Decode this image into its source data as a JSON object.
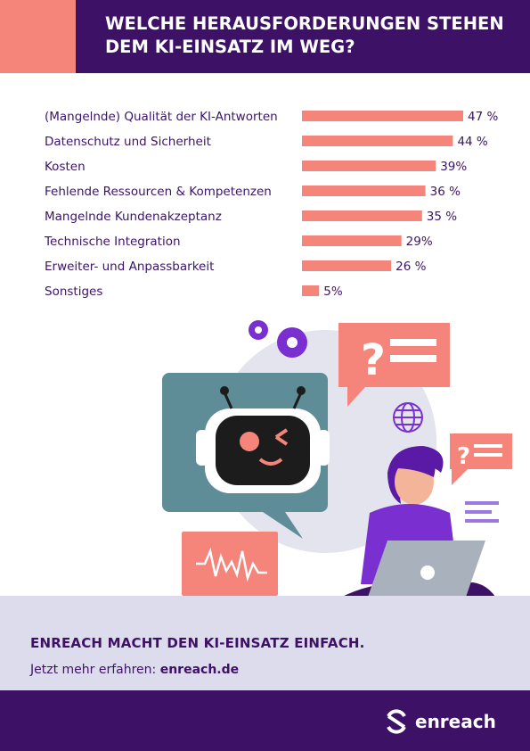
{
  "header": {
    "title": "WELCHE HERAUSFORDERUNGEN STEHEN DEM KI-EINSATZ IM WEG?"
  },
  "chart_data": {
    "type": "bar",
    "orientation": "horizontal",
    "title": "WELCHE HERAUSFORDERUNGEN STEHEN DEM KI-EINSATZ IM WEG?",
    "categories": [
      "(Mangelnde) Qualität der KI-Antworten",
      "Datenschutz und Sicherheit",
      "Kosten",
      "Fehlende Ressourcen & Kompetenzen",
      "Mangelnde Kundenakzeptanz",
      "Technische Integration",
      "Erweiter- und Anpassbarkeit",
      "Sonstiges"
    ],
    "values": [
      47,
      44,
      39,
      36,
      35,
      29,
      26,
      5
    ],
    "value_labels": [
      "47 %",
      "44 %",
      "39%",
      "36 %",
      "35 %",
      "29%",
      "26 %",
      "5%"
    ],
    "xlim": [
      0,
      47
    ],
    "grid": false,
    "bar_color": "#f5857a"
  },
  "footer": {
    "cta": "ENREACH MACHT DEN KI-EINSATZ EINFACH.",
    "more_prefix": "Jetzt mehr erfahren:",
    "more_link": "enreach.de",
    "logo": "enreach"
  },
  "colors": {
    "purple": "#3d1165",
    "salmon": "#f5857a",
    "lavender": "#dcdcec",
    "teal": "#5e8c97",
    "violet": "#7a2fd0"
  },
  "illustration": {
    "icons": [
      "gear-icon",
      "question-bubble-icon",
      "robot-chat-icon",
      "globe-icon",
      "waveform-icon",
      "laptop-icon",
      "apple-icon",
      "woman-figure"
    ]
  }
}
